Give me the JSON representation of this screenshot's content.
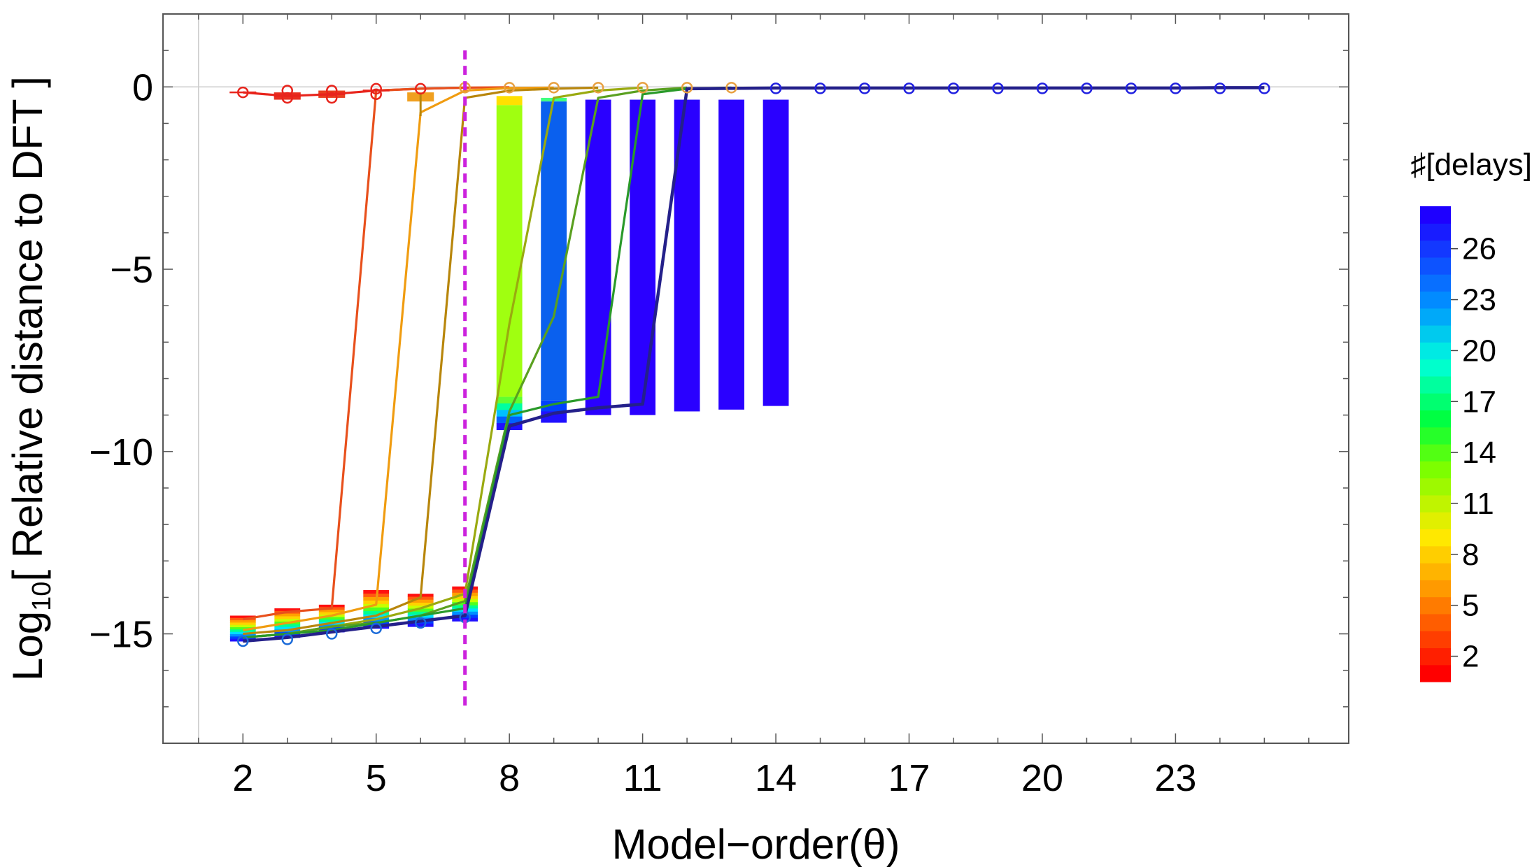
{
  "chart_data": {
    "type": "line",
    "title": "",
    "xlabel": "Model−order(θ)",
    "ylabel_prefix": "Log",
    "ylabel_sub": "10",
    "ylabel_rest": "[ Relative distance to DFT ]",
    "xlim": [
      0.2,
      26.9
    ],
    "ylim": [
      -18,
      2
    ],
    "xticks": [
      2,
      5,
      8,
      11,
      14,
      17,
      20,
      23
    ],
    "xtick_labels": [
      "2",
      "5",
      "8",
      "11",
      "14",
      "17",
      "20",
      "23"
    ],
    "yticks": [
      0,
      -5,
      -10,
      -15
    ],
    "ytick_labels": [
      "0",
      "−5",
      "−10",
      "−15"
    ],
    "grid": false,
    "reference_line": {
      "x": 7,
      "style": "dashed",
      "color": "#cc22dd"
    },
    "colorbar": {
      "title": "♯[delays]",
      "min": 1,
      "max": 28,
      "tick_values": [
        2,
        5,
        8,
        11,
        14,
        17,
        20,
        23,
        26
      ],
      "tick_labels": [
        "2",
        "5",
        "8",
        "11",
        "14",
        "17",
        "20",
        "23",
        "26"
      ],
      "colors": [
        "#ff0000",
        "#ff5a00",
        "#ffb400",
        "#d2ff00",
        "#00ff1e",
        "#00ffd2",
        "#00a0ff",
        "#0030ff",
        "#2800ff"
      ],
      "placement": "right"
    },
    "series": [
      {
        "delays": 1,
        "color": "#e8241c",
        "x": [
          2,
          3,
          4,
          5,
          6,
          7
        ],
        "y": [
          -0.15,
          -0.25,
          -0.2,
          -0.1,
          -0.05,
          -0.02
        ]
      },
      {
        "delays": 2,
        "color": "#e8501c",
        "x": [
          2,
          3,
          4,
          5,
          6,
          7,
          8
        ],
        "y": [
          -14.6,
          -14.4,
          -14.3,
          -0.1,
          -0.05,
          -0.02,
          -0.01
        ]
      },
      {
        "delays": 4,
        "color": "#f09c10",
        "x": [
          2,
          3,
          4,
          5,
          6,
          7,
          8,
          9
        ],
        "y": [
          -14.9,
          -14.7,
          -14.5,
          -14.2,
          -0.7,
          -0.1,
          -0.03,
          -0.02
        ]
      },
      {
        "delays": 6,
        "color": "#b8860b",
        "x": [
          2,
          3,
          4,
          5,
          6,
          7,
          8,
          9,
          10
        ],
        "y": [
          -15.0,
          -14.9,
          -14.7,
          -14.5,
          -14.0,
          -0.3,
          -0.1,
          -0.05,
          -0.02
        ]
      },
      {
        "delays": 9,
        "color": "#9aaa10",
        "x": [
          2,
          3,
          4,
          5,
          6,
          7,
          8,
          9,
          10,
          11
        ],
        "y": [
          -15.1,
          -15.0,
          -14.8,
          -14.6,
          -14.3,
          -13.9,
          -6.5,
          -0.3,
          -0.1,
          -0.02
        ]
      },
      {
        "delays": 11,
        "color": "#5aa020",
        "x": [
          2,
          3,
          4,
          5,
          6,
          7,
          8,
          9,
          10,
          11,
          12
        ],
        "y": [
          -15.1,
          -15.0,
          -14.8,
          -14.7,
          -14.5,
          -14.1,
          -8.9,
          -6.3,
          -0.3,
          -0.1,
          -0.02
        ]
      },
      {
        "delays": 14,
        "color": "#2a9a2a",
        "x": [
          2,
          3,
          4,
          5,
          6,
          7,
          8,
          9,
          10,
          11,
          12,
          13
        ],
        "y": [
          -15.1,
          -15.0,
          -14.9,
          -14.7,
          -14.5,
          -14.3,
          -9.0,
          -8.7,
          -8.5,
          -0.2,
          -0.05,
          -0.02
        ]
      },
      {
        "delays": 28,
        "color": "#24208a",
        "x": [
          2,
          3,
          4,
          5,
          6,
          7,
          8,
          9,
          10,
          11,
          12,
          13,
          14,
          15,
          16,
          17,
          18,
          19,
          20,
          21,
          22,
          23,
          24,
          25
        ],
        "y": [
          -15.2,
          -15.1,
          -14.95,
          -14.8,
          -14.65,
          -14.5,
          -9.3,
          -8.95,
          -8.8,
          -8.7,
          -0.05,
          -0.04,
          -0.03,
          -0.03,
          -0.03,
          -0.03,
          -0.03,
          -0.03,
          -0.03,
          -0.03,
          -0.03,
          -0.03,
          -0.02,
          -0.02
        ]
      }
    ],
    "top_markers": {
      "red": {
        "color": "#e8241c",
        "x": [
          2,
          3,
          3,
          4,
          4,
          5,
          5,
          6
        ],
        "y": [
          -0.15,
          -0.1,
          -0.3,
          -0.1,
          -0.3,
          -0.05,
          -0.2,
          -0.05
        ]
      },
      "orange": {
        "color": "#e8a040",
        "x": [
          7,
          8,
          9,
          10,
          11,
          12,
          13
        ],
        "y": [
          -0.02,
          -0.02,
          -0.02,
          -0.02,
          -0.02,
          -0.02,
          -0.02
        ]
      },
      "blue": {
        "color": "#2020e0",
        "x": [
          14,
          15,
          16,
          17,
          18,
          19,
          20,
          21,
          22,
          23,
          24,
          25
        ],
        "y": [
          -0.04,
          -0.04,
          -0.04,
          -0.04,
          -0.04,
          -0.04,
          -0.04,
          -0.04,
          -0.04,
          -0.04,
          -0.04,
          -0.04
        ]
      }
    },
    "bottom_markers": {
      "color": "#1a6ad8",
      "x": [
        2,
        3,
        4,
        5,
        6,
        7
      ],
      "y": [
        -15.2,
        -15.15,
        -15.0,
        -14.85,
        -14.7,
        -14.55
      ]
    },
    "bands": [
      {
        "x": 2,
        "top": -14.5,
        "bottom": -15.2,
        "palette": "full"
      },
      {
        "x": 3,
        "top": -14.3,
        "bottom": -15.1,
        "palette": "full"
      },
      {
        "x": 4,
        "top": -14.2,
        "bottom": -14.95,
        "palette": "full"
      },
      {
        "x": 5,
        "top": -13.8,
        "bottom": -14.85,
        "palette": "full"
      },
      {
        "x": 6,
        "top": -13.9,
        "bottom": -14.8,
        "palette": "full"
      },
      {
        "x": 7,
        "top": -13.7,
        "bottom": -14.65,
        "palette": "full"
      },
      {
        "x": 8,
        "top": -0.25,
        "bottom": -9.4,
        "palette": "green_main"
      },
      {
        "x": 9,
        "top": -0.3,
        "bottom": -9.2,
        "palette": "blue_main"
      },
      {
        "x": 10,
        "top": -0.15,
        "bottom": -9.0,
        "palette": "violet"
      },
      {
        "x": 11,
        "top": -0.1,
        "bottom": -9.0,
        "palette": "violet"
      },
      {
        "x": 12,
        "top": -0.1,
        "bottom": -8.9,
        "palette": "violet"
      },
      {
        "x": 13,
        "top": -0.05,
        "bottom": -8.85,
        "palette": "violet"
      },
      {
        "x": 14,
        "top": -0.05,
        "bottom": -8.75,
        "palette": "violet"
      }
    ],
    "top_small_bands": [
      {
        "x": 3,
        "top": -0.15,
        "bottom": -0.35,
        "color": "#e83020"
      },
      {
        "x": 4,
        "top": -0.1,
        "bottom": -0.3,
        "color": "#e84020"
      },
      {
        "x": 6,
        "top": -0.15,
        "bottom": -0.4,
        "color": "#f0a020"
      }
    ]
  }
}
